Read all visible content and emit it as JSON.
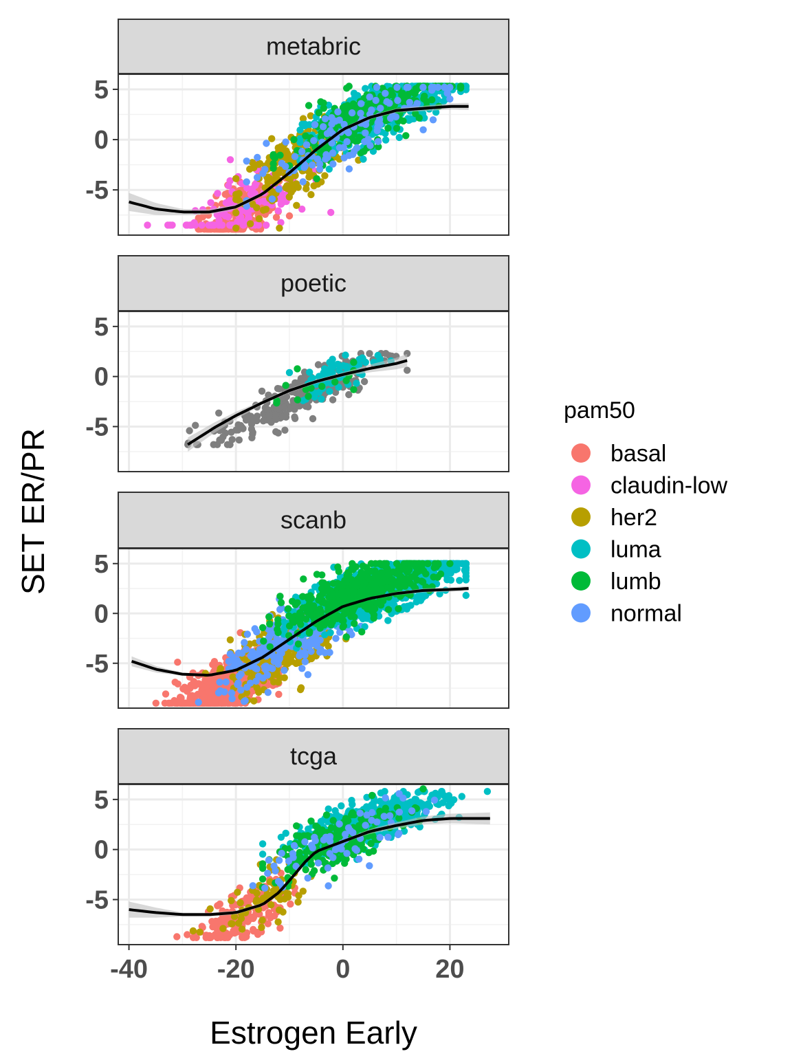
{
  "chart_data": {
    "type": "scatter",
    "xlabel": "Estrogen Early",
    "ylabel": "SET ER/PR",
    "xlim": [
      -42,
      31
    ],
    "ylim": [
      -9.5,
      6.5
    ],
    "x_ticks": [
      -40,
      -20,
      0,
      20
    ],
    "x_tick_labels": [
      "-40",
      "-20",
      "0",
      "20"
    ],
    "y_ticks": [
      -5,
      0,
      5
    ],
    "y_tick_labels": [
      "-5",
      "0",
      "5"
    ],
    "grid": true,
    "legend": {
      "title": "pam50",
      "position": "right",
      "entries": [
        {
          "label": "basal",
          "color": "#F8766D"
        },
        {
          "label": "claudin-low",
          "color": "#F564E3"
        },
        {
          "label": "her2",
          "color": "#B79F00"
        },
        {
          "label": "luma",
          "color": "#00BFC4"
        },
        {
          "label": "lumb",
          "color": "#00BA38"
        },
        {
          "label": "normal",
          "color": "#619CFF"
        }
      ]
    },
    "na_color": "#7F7F7F",
    "fit_color": "#000000",
    "band_color": "#BEBEBE",
    "panels": [
      {
        "title": "metabric",
        "fit_line": [
          [
            -40,
            -6.2
          ],
          [
            -35,
            -6.9
          ],
          [
            -30,
            -7.2
          ],
          [
            -25,
            -7.2
          ],
          [
            -20,
            -6.7
          ],
          [
            -15,
            -5.4
          ],
          [
            -10,
            -3.3
          ],
          [
            -5,
            -1.0
          ],
          [
            0,
            1.0
          ],
          [
            5,
            2.2
          ],
          [
            10,
            2.9
          ],
          [
            15,
            3.1
          ],
          [
            20,
            3.3
          ],
          [
            23.5,
            3.3
          ]
        ],
        "band_width": [
          [
            -40,
            0.9
          ],
          [
            -30,
            0.3
          ],
          [
            -10,
            0.15
          ],
          [
            10,
            0.2
          ],
          [
            23.5,
            0.35
          ]
        ],
        "clusters": [
          {
            "pam50": "basal",
            "n": 300,
            "x_center": -19,
            "x_sd": 4,
            "x_range": [
              -27,
              -10
            ],
            "y_slope": 0.28,
            "y_int": -2.0,
            "y_sd": 1.4,
            "y_min": -8.9
          },
          {
            "pam50": "claudin-low",
            "n": 130,
            "x_center": -18,
            "x_sd": 7,
            "x_range": [
              -38,
              -2
            ],
            "y_slope": 0.28,
            "y_int": -2.0,
            "y_sd": 1.8,
            "y_min": -8.5
          },
          {
            "pam50": "her2",
            "n": 200,
            "x_center": -9,
            "x_sd": 5,
            "x_range": [
              -20,
              5
            ],
            "y_slope": 0.28,
            "y_int": 0.0,
            "y_sd": 1.7,
            "y_min": -8.8
          },
          {
            "pam50": "luma",
            "n": 500,
            "x_center": 7,
            "x_sd": 7,
            "x_range": [
              -8,
              23
            ],
            "y_slope": 0.22,
            "y_int": 1.3,
            "y_sd": 1.3,
            "y_max": 5.3
          },
          {
            "pam50": "lumb",
            "n": 280,
            "x_center": 4,
            "x_sd": 7,
            "x_range": [
              -13,
              22
            ],
            "y_slope": 0.22,
            "y_int": 1.3,
            "y_sd": 1.4,
            "y_max": 5.3
          },
          {
            "pam50": "normal",
            "n": 120,
            "x_center": 0,
            "x_sd": 9,
            "x_range": [
              -18,
              20
            ],
            "y_slope": 0.26,
            "y_int": 0.5,
            "y_sd": 1.6,
            "y_max": 5.2
          }
        ]
      },
      {
        "title": "poetic",
        "fit_line": [
          [
            -29,
            -6.8
          ],
          [
            -24,
            -5.1
          ],
          [
            -20,
            -3.9
          ],
          [
            -15,
            -2.6
          ],
          [
            -10,
            -1.4
          ],
          [
            -5,
            -0.5
          ],
          [
            0,
            0.2
          ],
          [
            5,
            0.8
          ],
          [
            10,
            1.3
          ],
          [
            12,
            1.6
          ]
        ],
        "band_width": [
          [
            -29,
            0.7
          ],
          [
            -15,
            0.2
          ],
          [
            0,
            0.2
          ],
          [
            12,
            0.65
          ]
        ],
        "clusters": [
          {
            "pam50": "NA",
            "n": 260,
            "x_center": -8,
            "x_sd": 8,
            "x_range": [
              -29,
              12
            ],
            "y_slope": 0.25,
            "y_int": 0.0,
            "y_sd": 1.1,
            "y_min": -6.8,
            "y_max": 2.3
          },
          {
            "pam50": "luma",
            "n": 70,
            "x_center": 0,
            "x_sd": 4,
            "x_range": [
              -10,
              9
            ],
            "y_slope": 0.2,
            "y_int": 0.5,
            "y_sd": 0.9,
            "y_max": 3.0
          },
          {
            "pam50": "lumb",
            "n": 15,
            "x_center": -6,
            "x_sd": 5,
            "x_range": [
              -16,
              2
            ],
            "y_slope": 0.2,
            "y_int": 0.0,
            "y_sd": 1.0
          }
        ]
      },
      {
        "title": "scanb",
        "fit_line": [
          [
            -39.5,
            -4.8
          ],
          [
            -35,
            -5.6
          ],
          [
            -30,
            -6.1
          ],
          [
            -25,
            -6.2
          ],
          [
            -20,
            -5.7
          ],
          [
            -15,
            -4.4
          ],
          [
            -10,
            -2.6
          ],
          [
            -5,
            -0.8
          ],
          [
            0,
            0.7
          ],
          [
            5,
            1.5
          ],
          [
            10,
            2.0
          ],
          [
            15,
            2.3
          ],
          [
            20,
            2.4
          ],
          [
            23.5,
            2.5
          ]
        ],
        "band_width": [
          [
            -39.5,
            0.5
          ],
          [
            -30,
            0.15
          ],
          [
            0,
            0.1
          ],
          [
            23.5,
            0.25
          ]
        ],
        "clusters": [
          {
            "pam50": "basal",
            "n": 600,
            "x_center": -21,
            "x_sd": 5,
            "x_range": [
              -40,
              -12
            ],
            "y_slope": 0.25,
            "y_int": -1.8,
            "y_sd": 1.3,
            "y_min": -9.0
          },
          {
            "pam50": "her2",
            "n": 250,
            "x_center": -11,
            "x_sd": 5,
            "x_range": [
              -26,
              5
            ],
            "y_slope": 0.27,
            "y_int": -0.5,
            "y_sd": 1.6
          },
          {
            "pam50": "normal",
            "n": 250,
            "x_center": -9,
            "x_sd": 7,
            "x_range": [
              -27,
              8
            ],
            "y_slope": 0.27,
            "y_int": -0.3,
            "y_sd": 1.5
          },
          {
            "pam50": "luma",
            "n": 1100,
            "x_center": 7,
            "x_sd": 7,
            "x_range": [
              -11,
              23
            ],
            "y_slope": 0.18,
            "y_int": 1.3,
            "y_sd": 1.2,
            "y_max": 5.0
          },
          {
            "pam50": "lumb",
            "n": 500,
            "x_center": 3,
            "x_sd": 7,
            "x_range": [
              -15,
              20
            ],
            "y_slope": 0.2,
            "y_int": 1.5,
            "y_sd": 1.2,
            "y_max": 5.0
          }
        ]
      },
      {
        "title": "tcga",
        "fit_line": [
          [
            -40,
            -6.0
          ],
          [
            -35,
            -6.3
          ],
          [
            -30,
            -6.5
          ],
          [
            -25,
            -6.5
          ],
          [
            -20,
            -6.3
          ],
          [
            -15,
            -5.5
          ],
          [
            -12,
            -4.3
          ],
          [
            -10,
            -3.1
          ],
          [
            -7,
            -1.2
          ],
          [
            -5,
            -0.2
          ],
          [
            0,
            0.8
          ],
          [
            5,
            1.8
          ],
          [
            10,
            2.4
          ],
          [
            15,
            2.9
          ],
          [
            20,
            3.1
          ],
          [
            27.5,
            3.1
          ]
        ],
        "band_width": [
          [
            -40,
            0.8
          ],
          [
            -30,
            0.2
          ],
          [
            0,
            0.15
          ],
          [
            27.5,
            0.6
          ]
        ],
        "clusters": [
          {
            "pam50": "basal",
            "n": 180,
            "x_center": -19,
            "x_sd": 4,
            "x_range": [
              -40,
              -9
            ],
            "y_slope": 0.25,
            "y_int": -2.0,
            "y_sd": 1.2,
            "y_min": -8.8
          },
          {
            "pam50": "her2",
            "n": 70,
            "x_center": -14,
            "x_sd": 5,
            "x_range": [
              -28,
              -2
            ],
            "y_slope": 0.3,
            "y_int": -0.8,
            "y_sd": 1.4
          },
          {
            "pam50": "luma",
            "n": 500,
            "x_center": 5,
            "x_sd": 7,
            "x_range": [
              -15,
              27
            ],
            "y_slope": 0.17,
            "y_int": 1.8,
            "y_sd": 1.1,
            "y_max": 5.8
          },
          {
            "pam50": "lumb",
            "n": 220,
            "x_center": -2,
            "x_sd": 6,
            "x_range": [
              -15,
              15
            ],
            "y_slope": 0.22,
            "y_int": 1.2,
            "y_sd": 1.3
          },
          {
            "pam50": "normal",
            "n": 70,
            "x_center": 0,
            "x_sd": 8,
            "x_range": [
              -17,
              18
            ],
            "y_slope": 0.22,
            "y_int": 0.8,
            "y_sd": 1.4
          }
        ]
      }
    ]
  }
}
